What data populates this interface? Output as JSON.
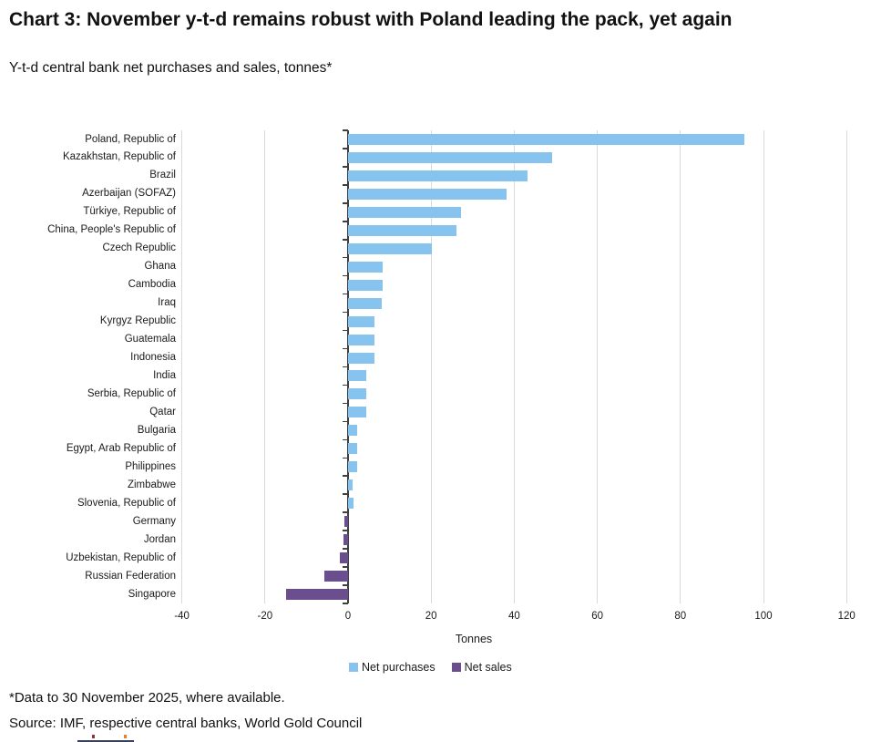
{
  "header": {
    "title": "Chart 3: November y-t-d remains robust with Poland leading the pack, yet again",
    "subtitle": "Y-t-d central bank net purchases and sales, tonnes*"
  },
  "chart_data": {
    "type": "bar",
    "orientation": "horizontal",
    "title": "Y-t-d central bank net purchases and sales, tonnes*",
    "xlabel": "Tonnes",
    "xlim": [
      -40,
      120
    ],
    "x_ticks": [
      -40,
      -20,
      0,
      20,
      40,
      60,
      80,
      100,
      120
    ],
    "grid": true,
    "legend_position": "bottom",
    "series": [
      {
        "name": "Net purchases",
        "color": "#86C3EF",
        "rule": "value >= 0"
      },
      {
        "name": "Net sales",
        "color": "#6B4E8E",
        "rule": "value < 0"
      }
    ],
    "categories": [
      "Poland, Republic of",
      "Kazakhstan, Republic of",
      "Brazil",
      "Azerbaijan (SOFAZ)",
      "Türkiye, Republic of",
      "China, People's Republic of",
      "Czech Republic",
      "Ghana",
      "Cambodia",
      "Iraq",
      "Kyrgyz Republic",
      "Guatemala",
      "Indonesia",
      "India",
      "Serbia, Republic of",
      "Qatar",
      "Bulgaria",
      "Egypt, Arab Republic of",
      "Philippines",
      "Zimbabwe",
      "Slovenia, Republic of",
      "Germany",
      "Jordan",
      "Uzbekistan, Republic of",
      "Russian Federation",
      "Singapore"
    ],
    "values": [
      95.4,
      49.1,
      43.1,
      38.1,
      27.3,
      26.2,
      20.2,
      8.3,
      8.3,
      8.2,
      6.3,
      6.3,
      6.4,
      4.4,
      4.4,
      4.4,
      2.2,
      2.3,
      2.3,
      1.2,
      1.4,
      -0.9,
      -1.1,
      -1.9,
      -5.7,
      -14.9
    ]
  },
  "footer": {
    "footnote": "*Data to 30 November 2025, where available.",
    "source": "Source: IMF, respective central banks, World Gold Council"
  }
}
